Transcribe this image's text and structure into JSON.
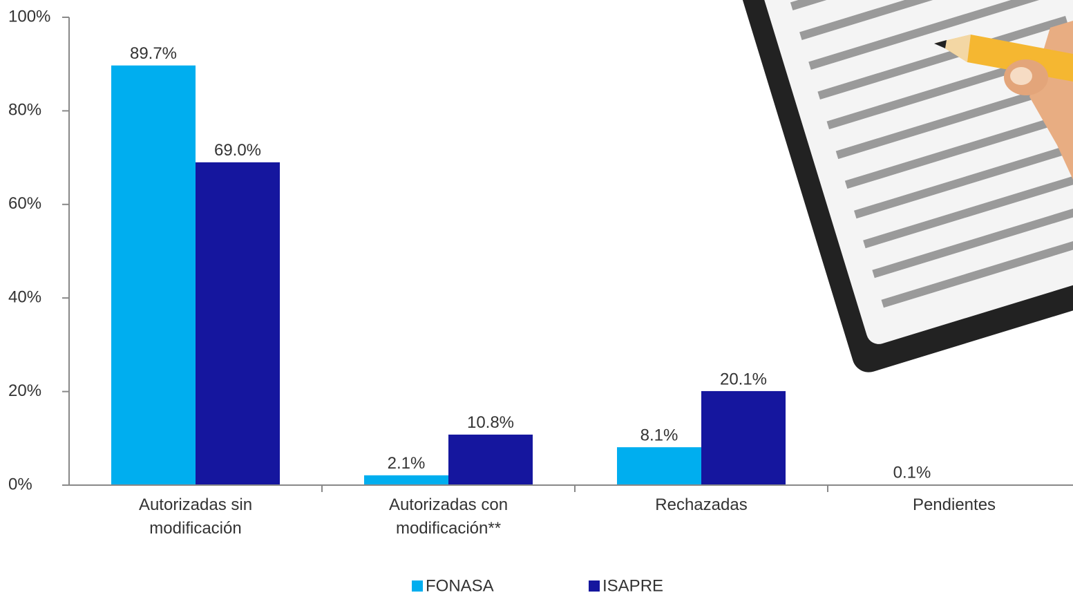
{
  "chart_data": {
    "type": "bar",
    "categories": [
      "Autorizadas sin modificación",
      "Autorizadas con modificación**",
      "Rechazadas",
      "Pendientes"
    ],
    "series": [
      {
        "name": "FONASA",
        "color": "#00aeef",
        "values": [
          89.7,
          2.1,
          8.1,
          0.1
        ],
        "value_labels": [
          "89.7%",
          "2.1%",
          "8.1%",
          "0.1%"
        ]
      },
      {
        "name": "ISAPRE",
        "color": "#15169e",
        "values": [
          69.0,
          10.8,
          20.1,
          null
        ],
        "value_labels": [
          "69.0%",
          "10.8%",
          "20.1%",
          null
        ]
      }
    ],
    "ylim": [
      0,
      100
    ],
    "yticks": [
      {
        "value": 0,
        "label": "0%"
      },
      {
        "value": 20,
        "label": "20%"
      },
      {
        "value": 40,
        "label": "40%"
      },
      {
        "value": 60,
        "label": "60%"
      },
      {
        "value": 80,
        "label": "80%"
      },
      {
        "value": 100,
        "label": "100%"
      }
    ],
    "legend": "bottom"
  }
}
